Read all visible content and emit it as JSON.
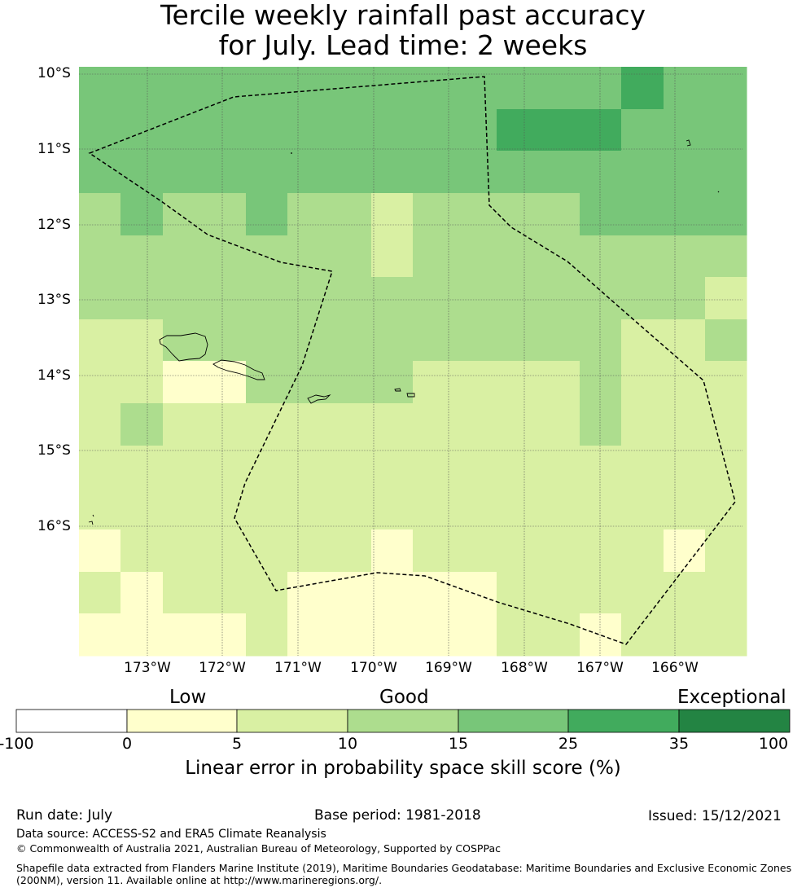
{
  "title": {
    "line1": "Tercile weekly rainfall past accuracy",
    "line2": "for July. Lead time: 2 weeks"
  },
  "map": {
    "lat_labels": [
      "10°S",
      "11°S",
      "12°S",
      "13°S",
      "14°S",
      "15°S",
      "16°S"
    ],
    "lon_labels": [
      "173°W",
      "172°W",
      "171°W",
      "170°W",
      "169°W",
      "168°W",
      "167°W",
      "166°W"
    ],
    "category_colors": [
      "#ffffff",
      "#ffffcc",
      "#d9f0a3",
      "#addd8e",
      "#78c679",
      "#41ab5d",
      "#238443"
    ],
    "grid_rows": [
      [
        4,
        4,
        4,
        4,
        4,
        4,
        4,
        4,
        4,
        4,
        4,
        4,
        4,
        5,
        4,
        4
      ],
      [
        4,
        4,
        4,
        4,
        4,
        4,
        4,
        4,
        4,
        4,
        5,
        5,
        5,
        4,
        4,
        4
      ],
      [
        4,
        4,
        4,
        4,
        4,
        4,
        4,
        4,
        4,
        4,
        4,
        4,
        4,
        4,
        4,
        4
      ],
      [
        3,
        4,
        3,
        3,
        4,
        3,
        3,
        2,
        3,
        3,
        3,
        3,
        4,
        4,
        4,
        4
      ],
      [
        3,
        3,
        3,
        3,
        3,
        3,
        3,
        2,
        3,
        3,
        3,
        3,
        3,
        3,
        3,
        3
      ],
      [
        3,
        3,
        3,
        3,
        3,
        3,
        3,
        3,
        3,
        3,
        3,
        3,
        3,
        3,
        3,
        2
      ],
      [
        2,
        2,
        3,
        3,
        3,
        3,
        3,
        3,
        3,
        3,
        3,
        3,
        3,
        2,
        2,
        3
      ],
      [
        2,
        2,
        1,
        1,
        3,
        3,
        3,
        3,
        2,
        2,
        2,
        2,
        3,
        2,
        2,
        2
      ],
      [
        2,
        3,
        2,
        2,
        2,
        2,
        2,
        2,
        2,
        2,
        2,
        2,
        3,
        2,
        2,
        2
      ],
      [
        2,
        2,
        2,
        2,
        2,
        2,
        2,
        2,
        2,
        2,
        2,
        2,
        2,
        2,
        2,
        2
      ],
      [
        2,
        2,
        2,
        2,
        2,
        2,
        2,
        2,
        2,
        2,
        2,
        2,
        2,
        2,
        2,
        2
      ],
      [
        1,
        2,
        2,
        2,
        2,
        2,
        2,
        1,
        2,
        2,
        2,
        2,
        2,
        2,
        1,
        2
      ],
      [
        2,
        1,
        2,
        2,
        2,
        1,
        1,
        1,
        1,
        1,
        2,
        2,
        2,
        2,
        2,
        2
      ],
      [
        1,
        1,
        1,
        1,
        2,
        1,
        1,
        1,
        1,
        1,
        2,
        2,
        1,
        2,
        2,
        2
      ]
    ]
  },
  "legend": {
    "category_labels": [
      "Low",
      "Good",
      "Exceptional"
    ],
    "tick_labels": [
      "-100",
      "0",
      "5",
      "10",
      "15",
      "25",
      "35",
      "100"
    ],
    "colors": [
      "#ffffff",
      "#ffffcc",
      "#d9f0a3",
      "#addd8e",
      "#78c679",
      "#41ab5d",
      "#238443"
    ],
    "title": "Linear error in probability space skill score (%)"
  },
  "footer": {
    "run_date": "Run date: July",
    "base_period": "Base period: 1981-2018",
    "issued": "Issued: 15/12/2021",
    "data_source": "Data source: ACCESS-S2 and ERA5 Climate Reanalysis",
    "copyright": "© Commonwealth of Australia 2021, Australian Bureau of Meteorology, Supported by COSPPac",
    "shapefile_line1": "Shapefile data extracted from Flanders Marine Institute (2019), Maritime Boundaries Geodatabase: Maritime Boundaries and Exclusive Economic Zones",
    "shapefile_line2": "(200NM), version 11. Available online at http://www.marineregions.org/."
  }
}
